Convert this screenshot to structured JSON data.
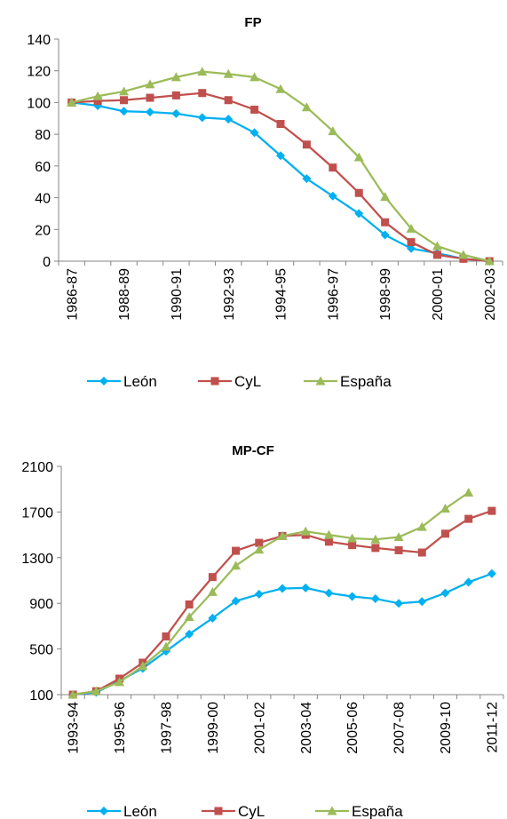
{
  "colors": {
    "leon": "#00B0F0",
    "cyl": "#C0504D",
    "espana": "#9BBB59",
    "axis": "#868686"
  },
  "chart_data": [
    {
      "type": "line",
      "title": "FP",
      "xlabel": "",
      "ylabel": "",
      "x": [
        "1986-87",
        "1987-88",
        "1988-89",
        "1989-90",
        "1990-91",
        "1991-92",
        "1992-93",
        "1993-94",
        "1994-95",
        "1995-96",
        "1996-97",
        "1997-98",
        "1998-99",
        "1999-00",
        "2000-01",
        "2001-02",
        "2002-03"
      ],
      "x_tick_labels": [
        "1986-87",
        "1988-89",
        "1990-91",
        "1992-93",
        "1994-95",
        "1996-97",
        "1998-99",
        "2000-01",
        "2002-03"
      ],
      "ylim": [
        0,
        140
      ],
      "y_ticks": [
        "0",
        "20",
        "40",
        "60",
        "80",
        "100",
        "120",
        "140"
      ],
      "grid": false,
      "legend": "bottom",
      "series": [
        {
          "name": "León",
          "color": "#00B0F0",
          "marker": "diamond",
          "values": [
            100,
            98,
            94.5,
            94,
            93,
            90.5,
            89.5,
            81,
            66.5,
            52,
            41,
            30,
            16.5,
            8,
            5,
            1.5,
            0
          ]
        },
        {
          "name": "CyL",
          "color": "#C0504D",
          "marker": "square",
          "values": [
            100,
            101,
            101.5,
            103,
            104.5,
            106,
            101.5,
            95.5,
            86.5,
            73.5,
            59,
            43,
            24.5,
            12,
            4,
            1.5,
            0
          ]
        },
        {
          "name": "España",
          "color": "#9BBB59",
          "marker": "triangle",
          "values": [
            100,
            104,
            107,
            111.5,
            116,
            119.5,
            118,
            116,
            108.5,
            97,
            82,
            65.5,
            40.5,
            20.5,
            9.5,
            4,
            0
          ]
        }
      ]
    },
    {
      "type": "line",
      "title": "MP-CF",
      "xlabel": "",
      "ylabel": "",
      "x": [
        "1993-94",
        "1994-95",
        "1995-96",
        "1996-97",
        "1997-98",
        "1998-99",
        "1999-00",
        "2000-01",
        "2001-02",
        "2002-03",
        "2003-04",
        "2004-05",
        "2005-06",
        "2006-07",
        "2007-08",
        "2008-09",
        "2009-10",
        "2010-11",
        "2011-12"
      ],
      "x_tick_labels": [
        "1993-94",
        "1995-96",
        "1997-98",
        "1999-00",
        "2001-02",
        "2003-04",
        "2005-06",
        "2007-08",
        "2009-10",
        "2011-12"
      ],
      "ylim": [
        100,
        2100
      ],
      "y_ticks": [
        "100",
        "500",
        "900",
        "1300",
        "1700",
        "2100"
      ],
      "grid": false,
      "legend": "bottom",
      "series": [
        {
          "name": "León",
          "color": "#00B0F0",
          "marker": "diamond",
          "values": [
            100,
            120,
            220,
            330,
            480,
            630,
            770,
            920,
            980,
            1030,
            1035,
            990,
            960,
            940,
            900,
            915,
            990,
            1085,
            1160
          ]
        },
        {
          "name": "CyL",
          "color": "#C0504D",
          "marker": "square",
          "values": [
            100,
            130,
            240,
            380,
            610,
            890,
            1130,
            1360,
            1430,
            1490,
            1500,
            1440,
            1410,
            1385,
            1365,
            1345,
            1510,
            1640,
            1710
          ]
        },
        {
          "name": "España",
          "color": "#9BBB59",
          "marker": "triangle",
          "values": [
            100,
            130,
            210,
            350,
            520,
            780,
            1000,
            1230,
            1370,
            1490,
            1530,
            1500,
            1470,
            1460,
            1480,
            1570,
            1730,
            1870,
            null
          ]
        }
      ]
    }
  ]
}
